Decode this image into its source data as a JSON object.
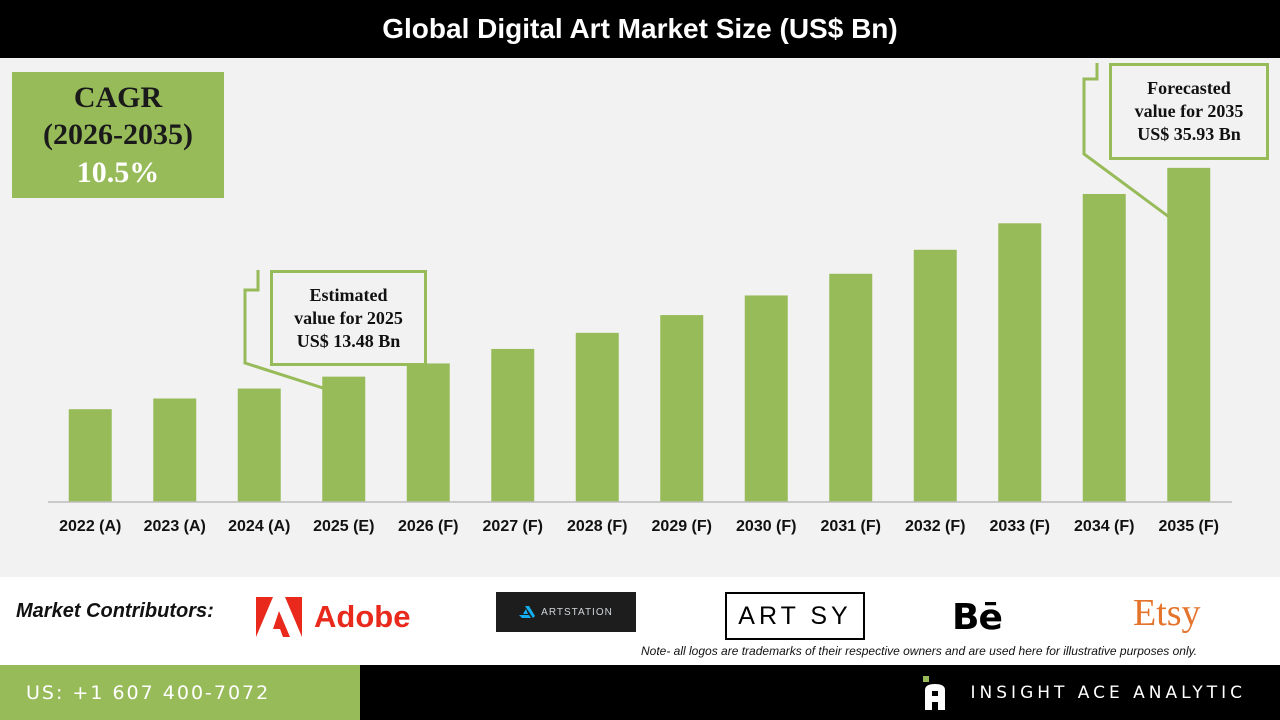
{
  "header": {
    "title": "Global Digital Art Market Size (US$ Bn)"
  },
  "cagr": {
    "line1": "CAGR",
    "line2": "(2026-2035)",
    "value": "10.5%"
  },
  "callouts": {
    "estimated": {
      "line1": "Estimated",
      "line2": "value for 2025",
      "line3": "US$ 13.48 Bn"
    },
    "forecasted": {
      "line1": "Forecasted",
      "line2": "value for 2035",
      "line3": "US$ 35.93 Bn"
    }
  },
  "colors": {
    "bar": "#98bb5a",
    "accent": "#98bb5a",
    "background": "#f2f2f2"
  },
  "chart_data": {
    "type": "bar",
    "categories": [
      "2022 (A)",
      "2023 (A)",
      "2024 (A)",
      "2025 (E)",
      "2026 (F)",
      "2027 (F)",
      "2028 (F)",
      "2029 (F)",
      "2030 (F)",
      "2031 (F)",
      "2032 (F)",
      "2033 (F)",
      "2034 (F)",
      "2035 (F)"
    ],
    "values": [
      9.98,
      11.13,
      12.2,
      13.48,
      14.9,
      16.46,
      18.19,
      20.1,
      22.21,
      24.54,
      27.12,
      29.97,
      33.12,
      35.93
    ],
    "ylim": [
      0,
      40
    ],
    "grid": false,
    "legend": "none"
  },
  "contributors": {
    "label": "Market Contributors:",
    "logos": {
      "adobe": "Adobe",
      "artstation": "ARTSTATION",
      "artsy": "ART SY",
      "behance": "Bē",
      "etsy": "Etsy"
    },
    "note": "Note- all logos are trademarks of their respective owners and are used here for illustrative purposes only."
  },
  "footer": {
    "phone": "US: +1 607 400-7072",
    "brand": "INSIGHT ACE ANALYTIC"
  }
}
